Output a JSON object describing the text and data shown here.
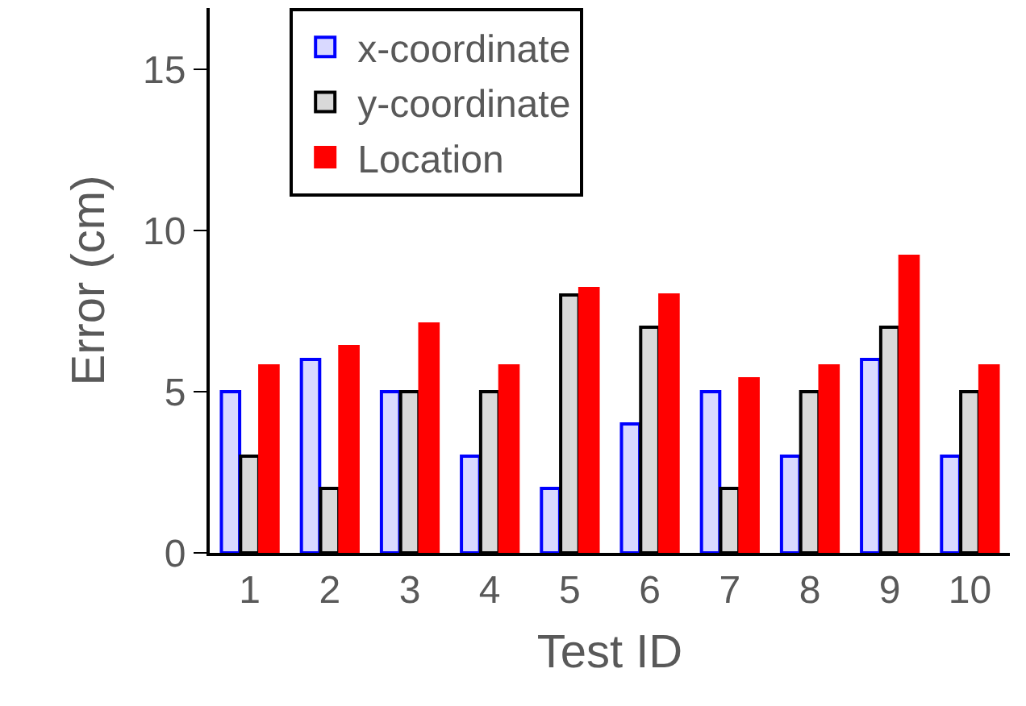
{
  "chart_data": {
    "type": "bar",
    "xlabel": "Test ID",
    "ylabel": "Error (cm)",
    "categories": [
      "1",
      "2",
      "3",
      "4",
      "5",
      "6",
      "7",
      "8",
      "9",
      "10"
    ],
    "series": [
      {
        "name": "x-coordinate",
        "color": "#0000ff",
        "values": [
          5,
          6,
          5,
          3,
          2,
          4,
          5,
          3,
          6,
          3
        ]
      },
      {
        "name": "y-coordinate",
        "color": "#000000",
        "values": [
          3,
          2,
          5,
          5,
          8,
          7,
          2,
          5,
          7,
          5
        ]
      },
      {
        "name": "Location",
        "color": "#ff0000",
        "values": [
          5.8,
          6.4,
          7.1,
          5.8,
          8.2,
          8.0,
          5.4,
          5.8,
          9.2,
          5.8
        ]
      }
    ],
    "ylim": [
      0,
      16.9
    ],
    "yticks": [
      0,
      5,
      10,
      15
    ],
    "legend": "top left"
  }
}
